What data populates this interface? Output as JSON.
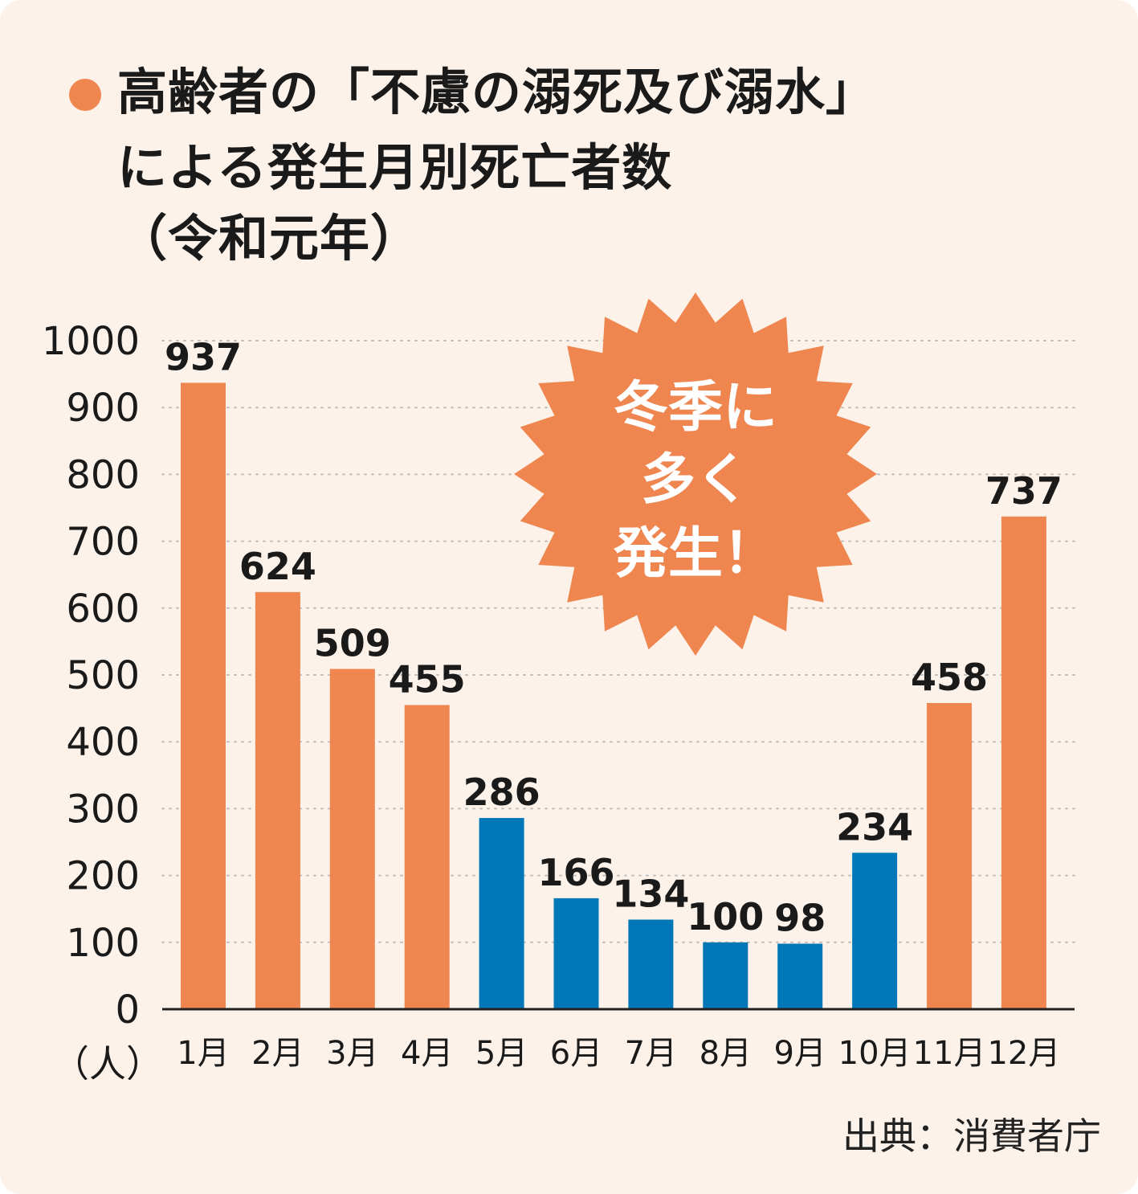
{
  "colors": {
    "background": "#fcf2ea",
    "winter_bar": "#ef864f",
    "summer_bar": "#0078b8",
    "text": "#1a1a1a",
    "grid": "#bdbdbd",
    "burst_text": "#ffffff"
  },
  "title": {
    "bullet_icon": "circle-bullet-icon",
    "line1": "高齢者の「不慮の溺死及び溺水」",
    "line2": "による発生月別死亡者数",
    "line3": "（令和元年）"
  },
  "callout": {
    "line1": "冬季に",
    "line2": "多く",
    "line3": "発生！"
  },
  "source": "出典：消費者庁",
  "chart_data": {
    "type": "bar",
    "title": "高齢者の「不慮の溺死及び溺水」による発生月別死亡者数（令和元年）",
    "xlabel": "",
    "ylabel": "（人）",
    "ylim": [
      0,
      1000
    ],
    "yticks": [
      0,
      100,
      200,
      300,
      400,
      500,
      600,
      700,
      800,
      900,
      1000
    ],
    "grid": true,
    "categories": [
      "1月",
      "2月",
      "3月",
      "4月",
      "5月",
      "6月",
      "7月",
      "8月",
      "9月",
      "10月",
      "11月",
      "12月"
    ],
    "values": [
      937,
      624,
      509,
      455,
      286,
      166,
      134,
      100,
      98,
      234,
      458,
      737
    ],
    "bar_colors": [
      "#ef864f",
      "#ef864f",
      "#ef864f",
      "#ef864f",
      "#0078b8",
      "#0078b8",
      "#0078b8",
      "#0078b8",
      "#0078b8",
      "#0078b8",
      "#ef864f",
      "#ef864f"
    ]
  }
}
